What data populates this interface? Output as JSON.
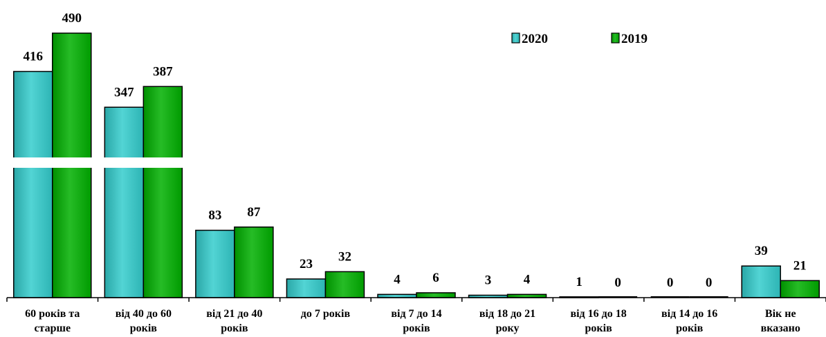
{
  "chart_data": {
    "type": "bar",
    "categories": [
      [
        "60 років та",
        "старше"
      ],
      [
        "від 40 до 60",
        "років"
      ],
      [
        "від 21 до 40",
        "років"
      ],
      [
        "до 7 років"
      ],
      [
        "від 7 до 14",
        "років"
      ],
      [
        "від 18 до 21",
        "року"
      ],
      [
        "від 16 до 18",
        "років"
      ],
      [
        "від 14 до 16",
        "років"
      ],
      [
        "Вік не",
        "вказано"
      ]
    ],
    "series": [
      {
        "name": "2020",
        "color": "#33CCCC",
        "values": [
          416,
          347,
          83,
          23,
          4,
          3,
          1,
          0,
          39
        ]
      },
      {
        "name": "2019",
        "color": "#00B000",
        "values": [
          490,
          387,
          87,
          32,
          6,
          4,
          0,
          0,
          21
        ]
      }
    ],
    "axis_break": true,
    "grid": false,
    "legend_position": "top-right"
  }
}
